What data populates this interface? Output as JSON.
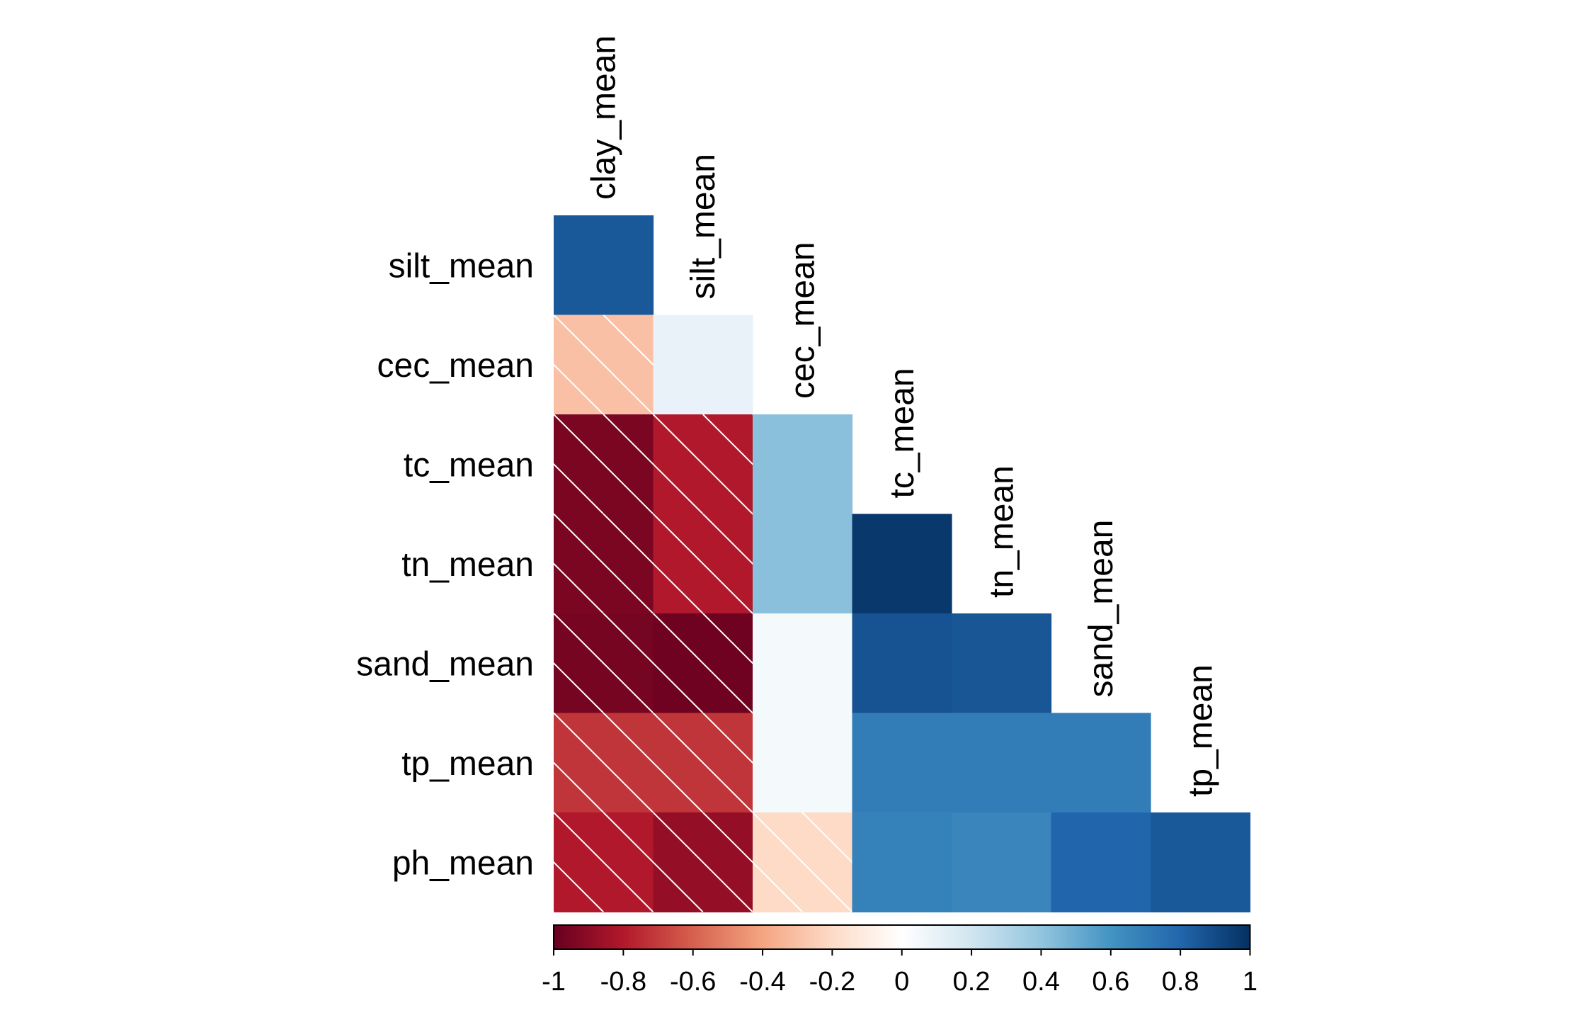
{
  "chart_data": {
    "type": "heatmap",
    "title": "",
    "variables": [
      "clay_mean",
      "silt_mean",
      "cec_mean",
      "tc_mean",
      "tn_mean",
      "sand_mean",
      "tp_mean",
      "ph_mean"
    ],
    "row_labels": [
      "silt_mean",
      "cec_mean",
      "tc_mean",
      "tn_mean",
      "sand_mean",
      "tp_mean",
      "ph_mean"
    ],
    "column_labels": [
      "clay_mean",
      "silt_mean",
      "cec_mean",
      "tc_mean",
      "tn_mean",
      "sand_mean",
      "tp_mean"
    ],
    "layout": "lower-triangle",
    "cells": [
      {
        "row": "silt_mean",
        "col": "clay_mean",
        "value": 0.85,
        "crossed": false
      },
      {
        "row": "cec_mean",
        "col": "clay_mean",
        "value": -0.3,
        "crossed": true
      },
      {
        "row": "cec_mean",
        "col": "silt_mean",
        "value": 0.1,
        "crossed": false
      },
      {
        "row": "tc_mean",
        "col": "clay_mean",
        "value": -0.95,
        "crossed": true
      },
      {
        "row": "tc_mean",
        "col": "silt_mean",
        "value": -0.8,
        "crossed": true
      },
      {
        "row": "tc_mean",
        "col": "cec_mean",
        "value": 0.42,
        "crossed": false
      },
      {
        "row": "tn_mean",
        "col": "clay_mean",
        "value": -0.95,
        "crossed": true
      },
      {
        "row": "tn_mean",
        "col": "silt_mean",
        "value": -0.8,
        "crossed": true
      },
      {
        "row": "tn_mean",
        "col": "cec_mean",
        "value": 0.42,
        "crossed": false
      },
      {
        "row": "tn_mean",
        "col": "tc_mean",
        "value": 0.97,
        "crossed": false
      },
      {
        "row": "sand_mean",
        "col": "clay_mean",
        "value": -0.96,
        "crossed": true
      },
      {
        "row": "sand_mean",
        "col": "silt_mean",
        "value": -0.98,
        "crossed": true
      },
      {
        "row": "sand_mean",
        "col": "cec_mean",
        "value": 0.05,
        "crossed": false
      },
      {
        "row": "sand_mean",
        "col": "tc_mean",
        "value": 0.87,
        "crossed": false
      },
      {
        "row": "sand_mean",
        "col": "tn_mean",
        "value": 0.86,
        "crossed": false
      },
      {
        "row": "tp_mean",
        "col": "clay_mean",
        "value": -0.72,
        "crossed": true
      },
      {
        "row": "tp_mean",
        "col": "silt_mean",
        "value": -0.72,
        "crossed": true
      },
      {
        "row": "tp_mean",
        "col": "cec_mean",
        "value": 0.05,
        "crossed": false
      },
      {
        "row": "tp_mean",
        "col": "tc_mean",
        "value": 0.7,
        "crossed": false
      },
      {
        "row": "tp_mean",
        "col": "tn_mean",
        "value": 0.7,
        "crossed": false
      },
      {
        "row": "tp_mean",
        "col": "sand_mean",
        "value": 0.7,
        "crossed": false
      },
      {
        "row": "ph_mean",
        "col": "clay_mean",
        "value": -0.8,
        "crossed": true
      },
      {
        "row": "ph_mean",
        "col": "silt_mean",
        "value": -0.88,
        "crossed": true
      },
      {
        "row": "ph_mean",
        "col": "cec_mean",
        "value": -0.2,
        "crossed": true
      },
      {
        "row": "ph_mean",
        "col": "tc_mean",
        "value": 0.68,
        "crossed": false
      },
      {
        "row": "ph_mean",
        "col": "tn_mean",
        "value": 0.66,
        "crossed": false
      },
      {
        "row": "ph_mean",
        "col": "sand_mean",
        "value": 0.8,
        "crossed": false
      },
      {
        "row": "ph_mean",
        "col": "tp_mean",
        "value": 0.85,
        "crossed": false
      }
    ],
    "colorbar": {
      "range": [
        -1,
        1
      ],
      "ticks": [
        -1,
        -0.8,
        -0.6,
        -0.4,
        -0.2,
        0,
        0.2,
        0.4,
        0.6,
        0.8,
        1
      ],
      "tick_labels": [
        "-1",
        "-0.8",
        "-0.6",
        "-0.4",
        "-0.2",
        "0",
        "0.2",
        "0.4",
        "0.6",
        "0.8",
        "1"
      ],
      "placement": "bottom",
      "colors": [
        "#67001F",
        "#B2182B",
        "#D6604D",
        "#F4A582",
        "#FDDBC7",
        "#FFFFFF",
        "#D1E5F0",
        "#92C5DE",
        "#4393C3",
        "#2166AC",
        "#053061"
      ]
    },
    "cross_mark_color": "#FFFFFF"
  }
}
